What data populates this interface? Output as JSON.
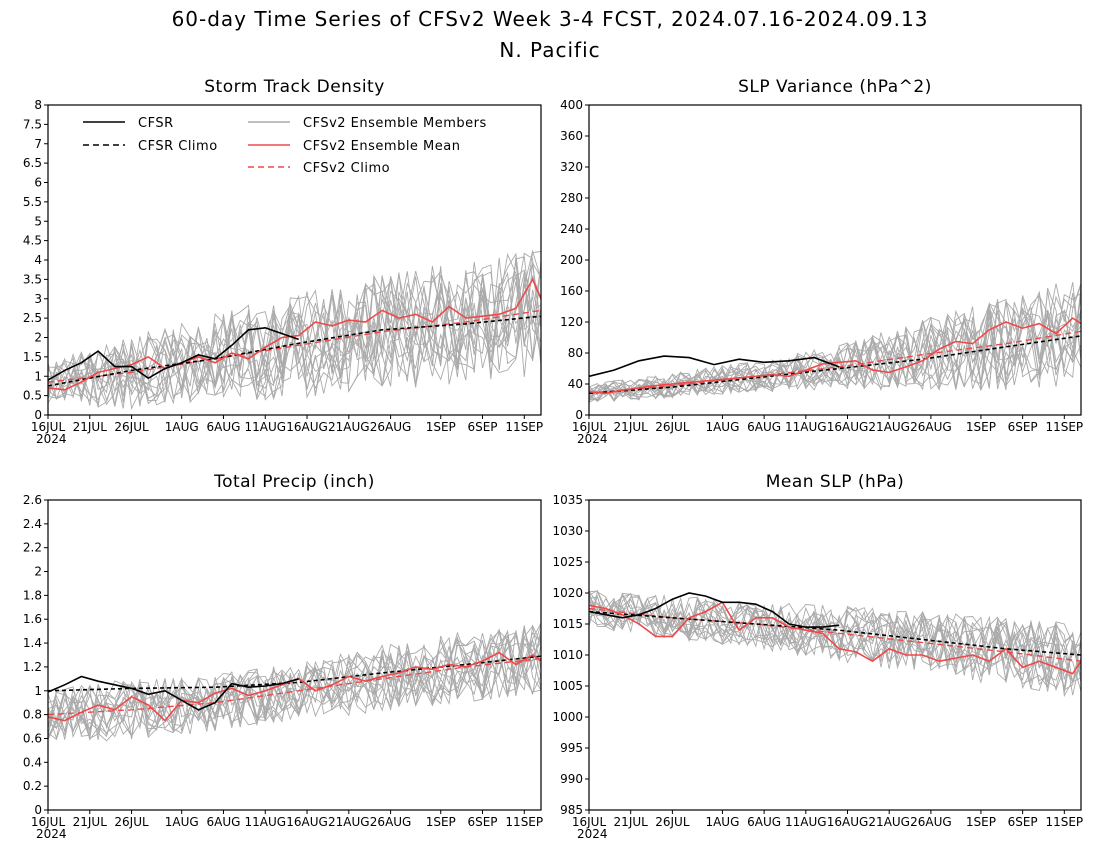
{
  "figure": {
    "title": "60-day Time Series of CFSv2 Week 3-4 FCST, 2024.07.16-2024.09.13",
    "subtitle": "N. Pacific"
  },
  "legend": {
    "cfsr": "CFSR",
    "cfsr_climo": "CFSR Climo",
    "members": "CFSv2 Ensemble Members",
    "ens_mean": "CFSv2 Ensemble Mean",
    "cfsv2_climo": "CFSv2 Climo"
  },
  "colors": {
    "cfsr": "#000000",
    "cfsr_climo": "#000000",
    "members": "#aaaaaa",
    "ens_mean": "#f04848",
    "cfsv2_climo": "#f04848"
  },
  "x_axis": {
    "ticks": [
      {
        "day": 0,
        "label": "16JUL"
      },
      {
        "day": 5,
        "label": "21JUL"
      },
      {
        "day": 10,
        "label": "26JUL"
      },
      {
        "day": 16,
        "label": "1AUG"
      },
      {
        "day": 21,
        "label": "6AUG"
      },
      {
        "day": 26,
        "label": "11AUG"
      },
      {
        "day": 31,
        "label": "16AUG"
      },
      {
        "day": 36,
        "label": "21AUG"
      },
      {
        "day": 41,
        "label": "26AUG"
      },
      {
        "day": 47,
        "label": "1SEP"
      },
      {
        "day": 52,
        "label": "6SEP"
      },
      {
        "day": 57,
        "label": "11SEP"
      }
    ],
    "year_label": "2024",
    "range": [
      0,
      59
    ]
  },
  "chart_data": [
    {
      "type": "line",
      "title": "Storm Track Density",
      "ylim": [
        0,
        8
      ],
      "yticks": [
        "0",
        "0.5",
        "1",
        "1.5",
        "2",
        "2.5",
        "3",
        "3.5",
        "4",
        "4.5",
        "5",
        "5.5",
        "6",
        "6.5",
        "7",
        "7.5",
        "8"
      ],
      "yticks_values": [
        0,
        0.5,
        1,
        1.5,
        2,
        2.5,
        3,
        3.5,
        4,
        4.5,
        5,
        5.5,
        6,
        6.5,
        7,
        7.5,
        8
      ],
      "show_legend": true,
      "series": [
        {
          "name": "CFSR",
          "role": "cfsr",
          "x": [
            0,
            2,
            4,
            6,
            8,
            10,
            12,
            14,
            16,
            18,
            20,
            22,
            24,
            26,
            28,
            30
          ],
          "y": [
            0.9,
            1.15,
            1.35,
            1.65,
            1.25,
            1.25,
            0.95,
            1.2,
            1.35,
            1.55,
            1.45,
            1.8,
            2.2,
            2.25,
            2.1,
            1.95
          ]
        },
        {
          "name": "CFSR Climo",
          "role": "cfsr_climo",
          "x": [
            0,
            10,
            20,
            30,
            40,
            50,
            59
          ],
          "y": [
            0.75,
            1.15,
            1.45,
            1.85,
            2.2,
            2.35,
            2.55
          ]
        },
        {
          "name": "CFSv2 Ensemble Mean",
          "role": "ens_mean",
          "x": [
            0,
            2,
            4,
            6,
            8,
            10,
            12,
            14,
            16,
            18,
            20,
            22,
            24,
            26,
            28,
            30,
            32,
            34,
            36,
            38,
            40,
            42,
            44,
            46,
            48,
            50,
            52,
            54,
            56,
            58,
            59
          ],
          "y": [
            0.7,
            0.65,
            0.85,
            1.1,
            1.2,
            1.3,
            1.5,
            1.2,
            1.35,
            1.5,
            1.35,
            1.6,
            1.45,
            1.75,
            2.0,
            2.05,
            2.4,
            2.3,
            2.45,
            2.4,
            2.7,
            2.5,
            2.6,
            2.4,
            2.8,
            2.5,
            2.55,
            2.6,
            2.75,
            3.5,
            3.0
          ]
        },
        {
          "name": "CFSv2 Climo",
          "role": "cfsv2_climo",
          "x": [
            0,
            10,
            20,
            30,
            40,
            50,
            59
          ],
          "y": [
            0.85,
            1.1,
            1.45,
            1.8,
            2.15,
            2.4,
            2.7
          ]
        }
      ],
      "ensemble_members": {
        "count": 16,
        "spread": [
          0.55,
          0.95,
          1.15,
          1.35,
          1.5,
          1.6,
          1.7
        ]
      }
    },
    {
      "type": "line",
      "title": "SLP Variance (hPa^2)",
      "ylim": [
        0,
        400
      ],
      "yticks": [
        "0",
        "40",
        "80",
        "120",
        "160",
        "200",
        "240",
        "280",
        "320",
        "360",
        "400"
      ],
      "yticks_values": [
        0,
        40,
        80,
        120,
        160,
        200,
        240,
        280,
        320,
        360,
        400
      ],
      "show_legend": false,
      "series": [
        {
          "name": "CFSR",
          "role": "cfsr",
          "x": [
            0,
            3,
            6,
            9,
            12,
            15,
            18,
            21,
            24,
            27,
            30
          ],
          "y": [
            50,
            58,
            70,
            76,
            74,
            65,
            72,
            68,
            70,
            74,
            62
          ]
        },
        {
          "name": "CFSR Climo",
          "role": "cfsr_climo",
          "x": [
            0,
            10,
            20,
            30,
            40,
            50,
            59
          ],
          "y": [
            28,
            36,
            48,
            60,
            72,
            88,
            102
          ]
        },
        {
          "name": "CFSv2 Ensemble Mean",
          "role": "ens_mean",
          "x": [
            0,
            2,
            4,
            6,
            8,
            10,
            12,
            14,
            16,
            18,
            20,
            22,
            24,
            26,
            28,
            30,
            32,
            34,
            36,
            38,
            40,
            42,
            44,
            46,
            48,
            50,
            52,
            54,
            56,
            58,
            59
          ],
          "y": [
            30,
            28,
            32,
            35,
            38,
            40,
            42,
            44,
            46,
            48,
            50,
            52,
            50,
            58,
            66,
            68,
            70,
            58,
            55,
            62,
            70,
            85,
            95,
            92,
            110,
            120,
            112,
            118,
            105,
            125,
            118
          ]
        },
        {
          "name": "CFSv2 Climo",
          "role": "cfsv2_climo",
          "x": [
            0,
            10,
            20,
            30,
            40,
            50,
            59
          ],
          "y": [
            28,
            38,
            50,
            62,
            78,
            92,
            108
          ]
        }
      ],
      "ensemble_members": {
        "count": 16,
        "spread": [
          12,
          16,
          20,
          28,
          45,
          60,
          70
        ]
      }
    },
    {
      "type": "line",
      "title": "Total Precip (inch)",
      "ylim": [
        0,
        2.6
      ],
      "yticks": [
        "0",
        "0.2",
        "0.4",
        "0.6",
        "0.8",
        "1",
        "1.2",
        "1.4",
        "1.6",
        "1.8",
        "2",
        "2.2",
        "2.4",
        "2.6"
      ],
      "yticks_values": [
        0,
        0.2,
        0.4,
        0.6,
        0.8,
        1,
        1.2,
        1.4,
        1.6,
        1.8,
        2,
        2.2,
        2.4,
        2.6
      ],
      "show_legend": false,
      "series": [
        {
          "name": "CFSR",
          "role": "cfsr",
          "x": [
            0,
            2,
            4,
            6,
            8,
            10,
            12,
            14,
            16,
            18,
            20,
            22,
            24,
            26,
            28,
            30
          ],
          "y": [
            0.99,
            1.05,
            1.12,
            1.08,
            1.05,
            1.02,
            0.97,
            1.0,
            0.92,
            0.84,
            0.9,
            1.06,
            1.03,
            1.04,
            1.06,
            1.1
          ]
        },
        {
          "name": "CFSR Climo",
          "role": "cfsr_climo",
          "x": [
            0,
            10,
            20,
            30,
            40,
            50,
            59
          ],
          "y": [
            1.0,
            1.02,
            1.03,
            1.07,
            1.15,
            1.22,
            1.29
          ]
        },
        {
          "name": "CFSv2 Ensemble Mean",
          "role": "ens_mean",
          "x": [
            0,
            2,
            4,
            6,
            8,
            10,
            12,
            14,
            16,
            18,
            20,
            22,
            24,
            26,
            28,
            30,
            32,
            34,
            36,
            38,
            40,
            42,
            44,
            46,
            48,
            50,
            52,
            54,
            56,
            58,
            59
          ],
          "y": [
            0.78,
            0.75,
            0.82,
            0.88,
            0.84,
            0.95,
            0.88,
            0.75,
            0.92,
            0.9,
            0.98,
            1.02,
            0.96,
            1.0,
            1.05,
            1.1,
            1.0,
            1.05,
            1.12,
            1.08,
            1.12,
            1.15,
            1.2,
            1.18,
            1.22,
            1.2,
            1.25,
            1.32,
            1.22,
            1.3,
            1.25
          ]
        },
        {
          "name": "CFSv2 Climo",
          "role": "cfsv2_climo",
          "x": [
            0,
            10,
            20,
            30,
            40,
            50,
            59
          ],
          "y": [
            0.8,
            0.84,
            0.9,
            1.0,
            1.1,
            1.2,
            1.27
          ]
        }
      ],
      "ensemble_members": {
        "count": 16,
        "spread": [
          0.22,
          0.26,
          0.24,
          0.24,
          0.28,
          0.3,
          0.3
        ]
      }
    },
    {
      "type": "line",
      "title": "Mean SLP (hPa)",
      "ylim": [
        985,
        1035
      ],
      "yticks": [
        "985",
        "990",
        "995",
        "1000",
        "1005",
        "1010",
        "1015",
        "1020",
        "1025",
        "1030",
        "1035"
      ],
      "yticks_values": [
        985,
        990,
        995,
        1000,
        1005,
        1010,
        1015,
        1020,
        1025,
        1030,
        1035
      ],
      "show_legend": false,
      "series": [
        {
          "name": "CFSR",
          "role": "cfsr",
          "x": [
            0,
            2,
            4,
            6,
            8,
            10,
            12,
            14,
            16,
            18,
            20,
            22,
            24,
            26,
            28,
            30
          ],
          "y": [
            1017,
            1016.5,
            1016,
            1016.5,
            1017.5,
            1019,
            1020,
            1019.5,
            1018.5,
            1018.5,
            1018.2,
            1017,
            1015,
            1014.5,
            1014.5,
            1014.8
          ]
        },
        {
          "name": "CFSR Climo",
          "role": "cfsr_climo",
          "x": [
            0,
            10,
            20,
            30,
            40,
            50,
            59
          ],
          "y": [
            1017,
            1016,
            1015,
            1014,
            1012.5,
            1011,
            1010
          ]
        },
        {
          "name": "CFSv2 Ensemble Mean",
          "role": "ens_mean",
          "x": [
            0,
            2,
            4,
            6,
            8,
            10,
            12,
            14,
            16,
            18,
            20,
            22,
            24,
            26,
            28,
            30,
            32,
            34,
            36,
            38,
            40,
            42,
            44,
            46,
            48,
            50,
            52,
            54,
            56,
            58,
            59
          ],
          "y": [
            1018,
            1017.5,
            1016.5,
            1015,
            1013,
            1013,
            1016,
            1017,
            1018.5,
            1014,
            1016,
            1016,
            1014.5,
            1014,
            1013.5,
            1011,
            1010.5,
            1009,
            1011,
            1010,
            1010,
            1009,
            1009.5,
            1010,
            1009,
            1011,
            1008,
            1009,
            1008,
            1007,
            1009
          ]
        },
        {
          "name": "CFSv2 Climo",
          "role": "cfsv2_climo",
          "x": [
            0,
            10,
            20,
            30,
            40,
            50,
            59
          ],
          "y": [
            1017.5,
            1016,
            1015,
            1013.5,
            1012,
            1010.5,
            1009
          ]
        }
      ],
      "ensemble_members": {
        "count": 16,
        "spread": [
          3,
          3.5,
          4,
          4.5,
          5,
          5.5,
          6
        ]
      }
    }
  ]
}
